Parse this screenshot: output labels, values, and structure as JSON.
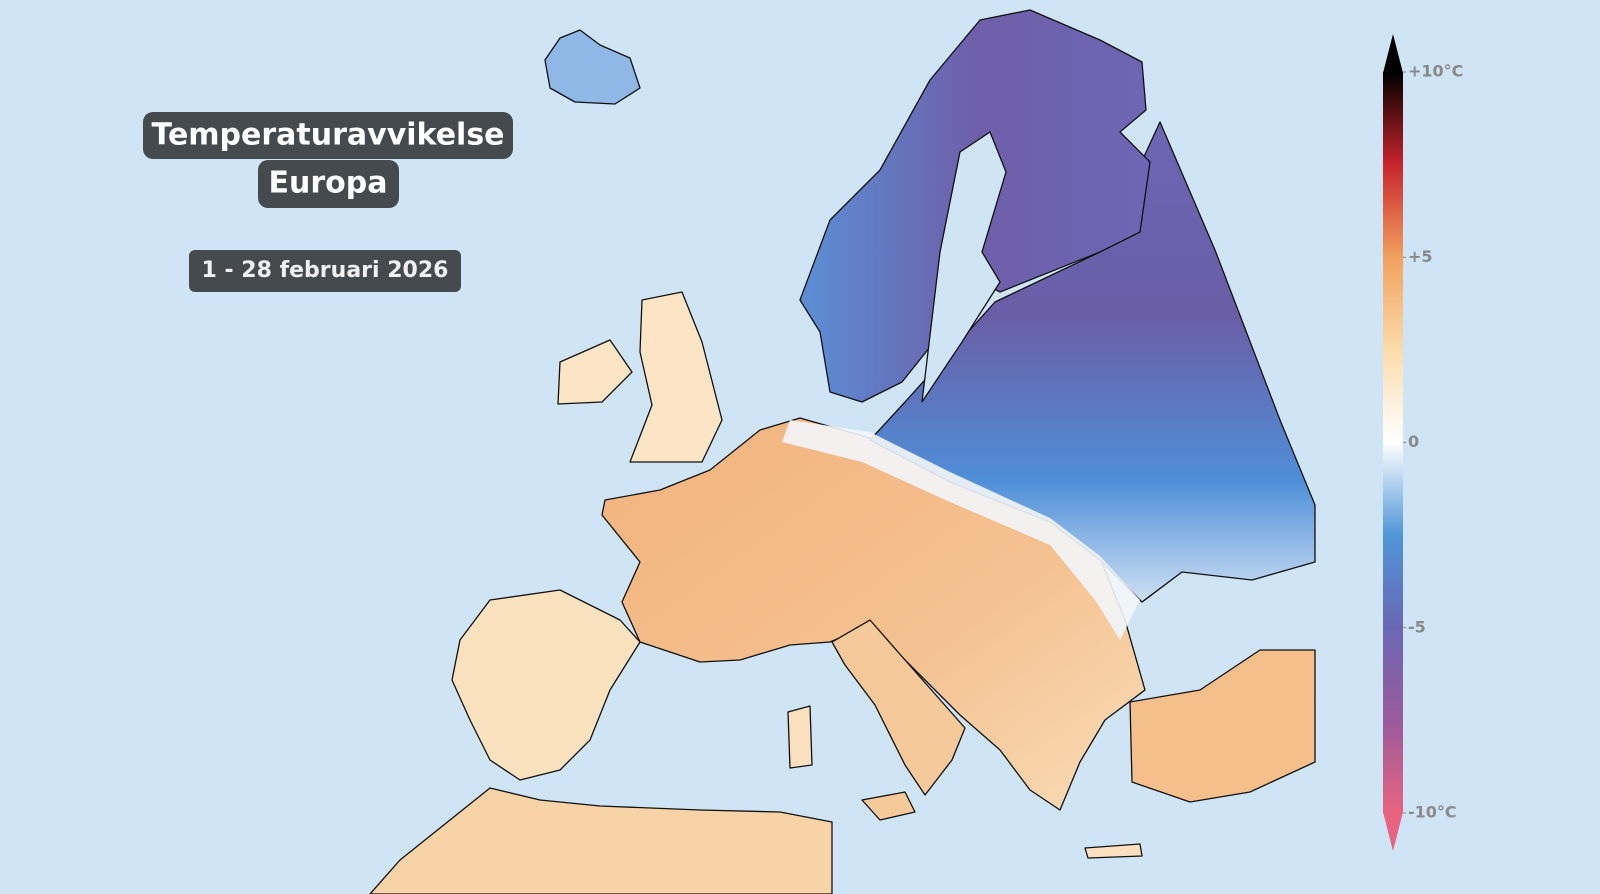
{
  "title": {
    "lines": [
      "Temperaturavvikelse",
      "Europa"
    ]
  },
  "date": "1 - 28 februari 2026",
  "colorbar": {
    "lim": [
      -10,
      10
    ],
    "ticks": [
      {
        "value": 10,
        "label": "+10°C"
      },
      {
        "value": 5,
        "label": "+5"
      },
      0,
      -5,
      {
        "value": -10,
        "label": "-10°C"
      }
    ],
    "colors": [
      "#e8637f",
      "#9a5b9c",
      "#6a68b4",
      "#4f95d8",
      "#ffffff",
      "#fbdcaa",
      "#f2a15e",
      "#c8242c",
      "#000000"
    ]
  }
}
